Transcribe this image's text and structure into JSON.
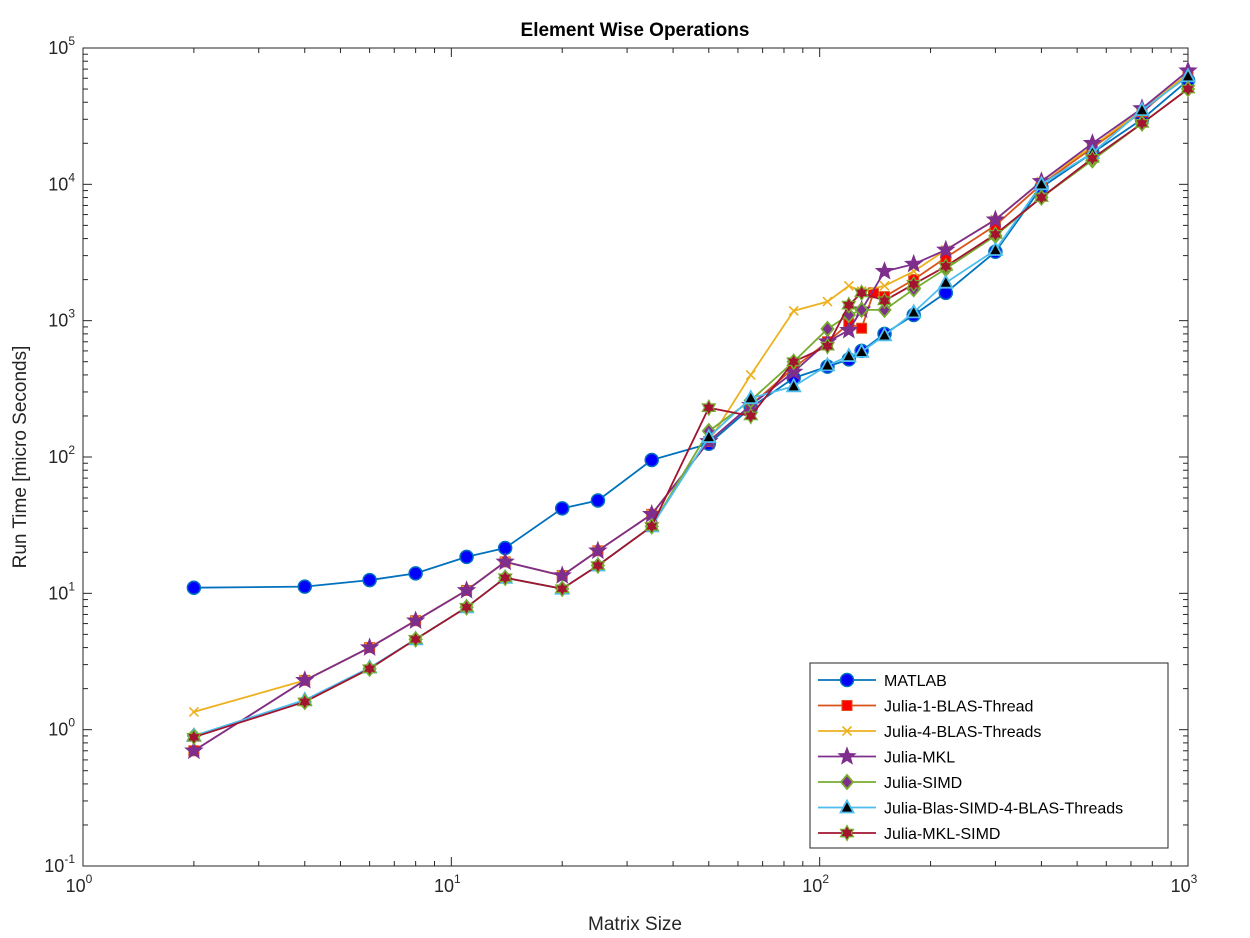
{
  "chart_data": {
    "type": "line",
    "title": "Element Wise Operations",
    "xlabel": "Matrix Size",
    "ylabel": "Run Time  [micro Seconds]",
    "xscale": "log",
    "yscale": "log",
    "xlim": [
      1,
      1000
    ],
    "ylim": [
      0.1,
      100000
    ],
    "grid": false,
    "legend_position": "bottom-right",
    "x_ticks": [
      {
        "base": "10",
        "exp": "0",
        "value": 1
      },
      {
        "base": "10",
        "exp": "1",
        "value": 10
      },
      {
        "base": "10",
        "exp": "2",
        "value": 100
      },
      {
        "base": "10",
        "exp": "3",
        "value": 1000
      }
    ],
    "y_ticks": [
      {
        "base": "10",
        "exp": "-1",
        "value": 0.1
      },
      {
        "base": "10",
        "exp": "0",
        "value": 1
      },
      {
        "base": "10",
        "exp": "1",
        "value": 10
      },
      {
        "base": "10",
        "exp": "2",
        "value": 100
      },
      {
        "base": "10",
        "exp": "3",
        "value": 1000
      },
      {
        "base": "10",
        "exp": "4",
        "value": 10000
      },
      {
        "base": "10",
        "exp": "5",
        "value": 100000
      }
    ],
    "series": [
      {
        "name": "MATLAB",
        "color": "#0072BD",
        "marker": "circle",
        "marker_fill": "#0000ff",
        "x": [
          2,
          4,
          6,
          8,
          11,
          14,
          20,
          25,
          35,
          50,
          65,
          85,
          105,
          120,
          130,
          150,
          180,
          220,
          300,
          400,
          550,
          750,
          1000
        ],
        "y": [
          11,
          11.2,
          12.5,
          14,
          18.5,
          21.5,
          42,
          48,
          95,
          125,
          230,
          380,
          460,
          520,
          600,
          800,
          1100,
          1600,
          3200,
          9500,
          17000,
          30000,
          58000
        ]
      },
      {
        "name": "Julia-1-BLAS-Thread",
        "color": "#D95319",
        "marker": "square",
        "marker_fill": "#ff0000",
        "x": [
          2,
          4,
          6,
          8,
          11,
          14,
          20,
          25,
          35,
          50,
          65,
          85,
          105,
          120,
          130,
          140,
          150,
          180,
          220,
          300,
          400,
          550,
          750,
          1000
        ],
        "y": [
          0.7,
          2.3,
          4,
          6.3,
          10.5,
          17,
          13.5,
          20.5,
          38,
          130,
          240,
          450,
          700,
          950,
          880,
          1600,
          1500,
          2000,
          2900,
          5000,
          10000,
          18500,
          34000,
          64000
        ]
      },
      {
        "name": "Julia-4-BLAS-Threads",
        "color": "#EDB120",
        "marker": "x",
        "marker_fill": "#EDB120",
        "x": [
          2,
          4,
          6,
          8,
          11,
          14,
          20,
          25,
          35,
          50,
          65,
          85,
          105,
          120,
          130,
          150,
          180,
          220,
          300,
          400,
          550,
          750,
          1000
        ],
        "y": [
          1.35,
          2.3,
          4,
          6.3,
          10.5,
          17,
          13.5,
          20.5,
          38,
          130,
          400,
          1180,
          1380,
          1800,
          1650,
          1800,
          2300,
          3300,
          5500,
          10500,
          19000,
          35000,
          65000
        ]
      },
      {
        "name": "Julia-MKL",
        "color": "#7E2F8E",
        "marker": "star",
        "marker_fill": "#7E2F8E",
        "x": [
          2,
          4,
          6,
          8,
          11,
          14,
          20,
          25,
          35,
          50,
          65,
          85,
          105,
          120,
          130,
          150,
          180,
          220,
          300,
          400,
          550,
          750,
          1000
        ],
        "y": [
          0.7,
          2.3,
          4,
          6.3,
          10.5,
          17,
          13.5,
          20.5,
          38,
          130,
          240,
          420,
          700,
          850,
          1200,
          2300,
          2600,
          3300,
          5500,
          10500,
          20000,
          36000,
          68000
        ]
      },
      {
        "name": "Julia-SIMD",
        "color": "#77AC30",
        "marker": "diamond",
        "marker_fill": "#7E2F8E",
        "x": [
          2,
          4,
          6,
          8,
          11,
          14,
          20,
          25,
          35,
          50,
          65,
          85,
          105,
          120,
          130,
          150,
          180,
          220,
          300,
          400,
          550,
          750,
          1000
        ],
        "y": [
          0.9,
          1.6,
          2.8,
          4.6,
          7.9,
          13,
          10.8,
          16,
          31,
          155,
          260,
          500,
          870,
          1100,
          1200,
          1200,
          1700,
          2400,
          4200,
          8000,
          15000,
          28000,
          50000
        ]
      },
      {
        "name": "Julia-Blas-SIMD-4-BLAS-Threads",
        "color": "#4DBEEE",
        "marker": "triangle",
        "marker_fill": "#000000",
        "x": [
          2,
          4,
          6,
          8,
          11,
          14,
          20,
          25,
          35,
          50,
          65,
          85,
          105,
          120,
          130,
          150,
          180,
          220,
          300,
          400,
          550,
          750,
          1000
        ],
        "y": [
          0.9,
          1.65,
          2.85,
          4.6,
          7.9,
          13,
          10.8,
          16,
          31,
          140,
          270,
          330,
          470,
          550,
          590,
          780,
          1150,
          1900,
          3300,
          10000,
          17000,
          35000,
          62000
        ]
      },
      {
        "name": "Julia-MKL-SIMD",
        "color": "#A2142F",
        "marker": "hexagram",
        "marker_fill": "#A2142F",
        "x": [
          2,
          4,
          6,
          8,
          11,
          14,
          20,
          25,
          35,
          50,
          65,
          85,
          105,
          120,
          130,
          150,
          180,
          220,
          300,
          400,
          550,
          750,
          1000
        ],
        "y": [
          0.88,
          1.6,
          2.8,
          4.6,
          7.9,
          13,
          10.8,
          16,
          31,
          230,
          200,
          500,
          650,
          1300,
          1600,
          1400,
          1850,
          2500,
          4300,
          8000,
          15500,
          28000,
          50000
        ]
      }
    ]
  }
}
